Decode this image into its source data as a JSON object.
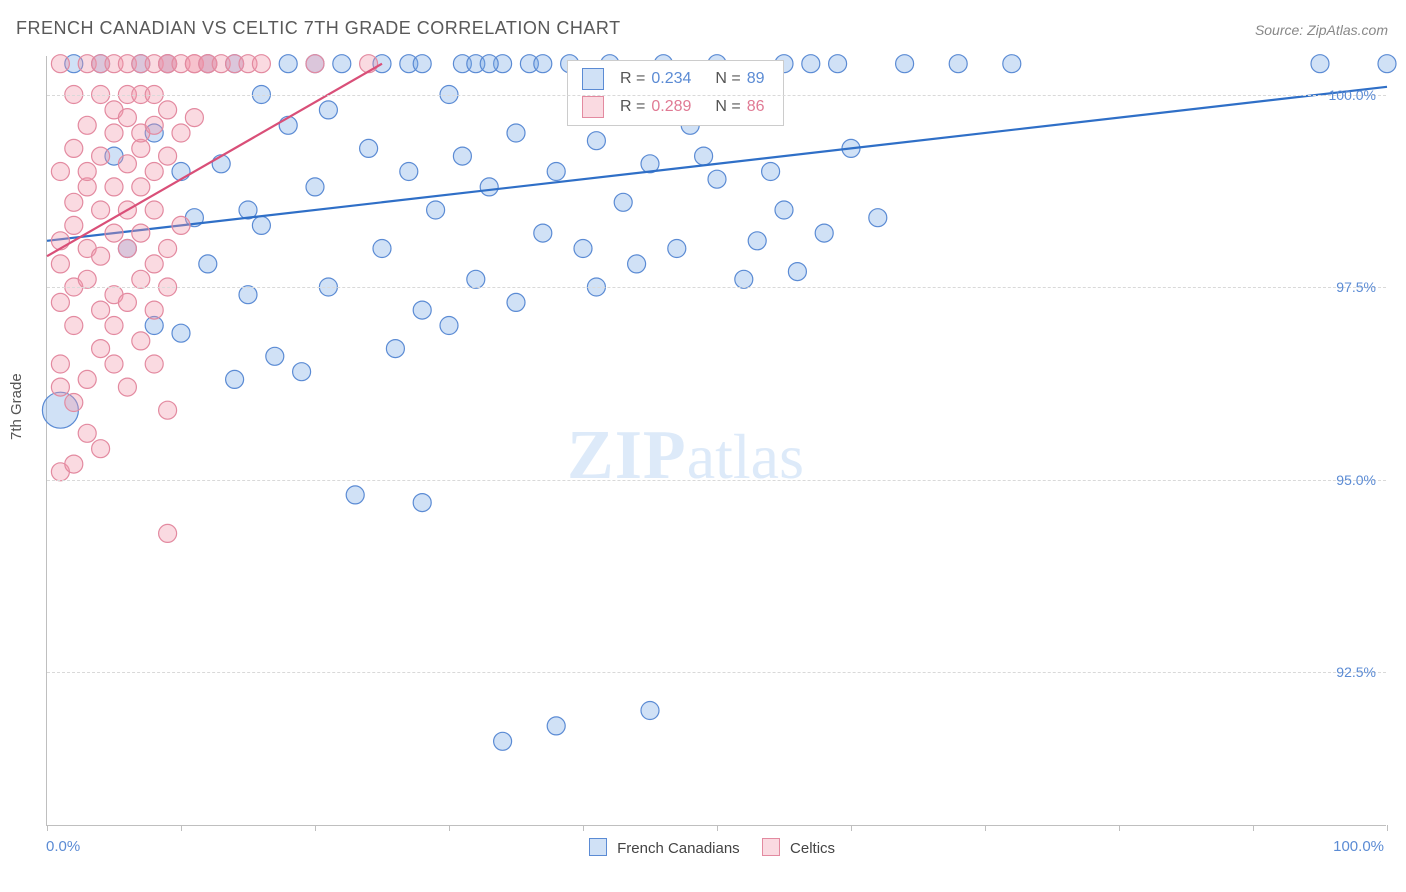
{
  "title": "FRENCH CANADIAN VS CELTIC 7TH GRADE CORRELATION CHART",
  "source_label": "Source: ZipAtlas.com",
  "ylabel": "7th Grade",
  "watermark_a": "ZIP",
  "watermark_b": "atlas",
  "chart": {
    "type": "scatter",
    "background_color": "#ffffff",
    "grid_color": "#d9d9d9",
    "axis_color": "#bfbfbf",
    "tick_label_color": "#5b8bd4",
    "xlim": [
      0,
      100
    ],
    "ylim": [
      90.5,
      100.5
    ],
    "x_tick_positions": [
      0,
      10,
      20,
      30,
      40,
      50,
      60,
      70,
      80,
      90,
      100
    ],
    "x_tick_labels": {
      "0": "0.0%",
      "100": "100.0%"
    },
    "y_ticks": [
      {
        "v": 100.0,
        "label": "100.0%"
      },
      {
        "v": 97.5,
        "label": "97.5%"
      },
      {
        "v": 95.0,
        "label": "95.0%"
      },
      {
        "v": 92.5,
        "label": "92.5%"
      }
    ],
    "marker_radius": 9,
    "marker_stroke_width": 1.2,
    "trend_line_width": 2.2,
    "series": [
      {
        "key": "french_canadians",
        "label": "French Canadians",
        "fill": "rgba(120,170,230,0.35)",
        "stroke": "#5b8bd4",
        "trend_color": "#2f6fc7",
        "R": "0.234",
        "N": "89",
        "trend": {
          "x1": 0,
          "y1": 98.1,
          "x2": 100,
          "y2": 100.1
        },
        "points": [
          [
            1,
            95.9,
            18
          ],
          [
            2,
            100.4
          ],
          [
            4,
            100.4
          ],
          [
            5,
            99.2
          ],
          [
            6,
            98.0
          ],
          [
            7,
            100.4
          ],
          [
            8,
            99.5
          ],
          [
            8,
            97.0
          ],
          [
            9,
            100.4
          ],
          [
            10,
            99.0
          ],
          [
            10,
            96.9
          ],
          [
            11,
            98.4
          ],
          [
            12,
            100.4
          ],
          [
            12,
            97.8
          ],
          [
            13,
            99.1
          ],
          [
            14,
            100.4
          ],
          [
            14,
            96.3
          ],
          [
            15,
            98.5
          ],
          [
            15,
            97.4
          ],
          [
            16,
            100.0
          ],
          [
            16,
            98.3
          ],
          [
            17,
            96.6
          ],
          [
            18,
            100.4
          ],
          [
            18,
            99.6
          ],
          [
            19,
            96.4
          ],
          [
            20,
            100.4
          ],
          [
            20,
            98.8
          ],
          [
            21,
            97.5
          ],
          [
            22,
            100.4
          ],
          [
            23,
            94.8
          ],
          [
            24,
            99.3
          ],
          [
            25,
            100.4
          ],
          [
            25,
            98.0
          ],
          [
            26,
            96.7
          ],
          [
            27,
            100.4
          ],
          [
            27,
            99.0
          ],
          [
            28,
            97.2
          ],
          [
            28,
            94.7
          ],
          [
            28,
            100.4
          ],
          [
            29,
            98.5
          ],
          [
            30,
            100.0
          ],
          [
            30,
            97.0
          ],
          [
            31,
            100.4
          ],
          [
            31,
            99.2
          ],
          [
            32,
            100.4
          ],
          [
            32,
            97.6
          ],
          [
            33,
            98.8
          ],
          [
            34,
            100.4
          ],
          [
            34,
            91.6
          ],
          [
            35,
            99.5
          ],
          [
            35,
            97.3
          ],
          [
            36,
            100.4
          ],
          [
            37,
            98.2
          ],
          [
            37,
            100.4
          ],
          [
            38,
            99.0
          ],
          [
            38,
            91.8
          ],
          [
            39,
            100.4
          ],
          [
            40,
            98.0
          ],
          [
            41,
            99.4
          ],
          [
            41,
            97.5
          ],
          [
            42,
            100.4
          ],
          [
            43,
            98.6
          ],
          [
            44,
            97.8
          ],
          [
            45,
            99.1
          ],
          [
            45,
            92.0
          ],
          [
            46,
            100.4
          ],
          [
            47,
            98.0
          ],
          [
            49,
            99.2
          ],
          [
            50,
            100.4
          ],
          [
            52,
            97.6
          ],
          [
            53,
            98.1
          ],
          [
            55,
            98.5
          ],
          [
            55,
            100.4
          ],
          [
            56,
            97.7
          ],
          [
            57,
            100.4
          ],
          [
            58,
            98.2
          ],
          [
            59,
            100.4
          ],
          [
            62,
            98.4
          ],
          [
            64,
            100.4
          ],
          [
            68,
            100.4
          ],
          [
            72,
            100.4
          ],
          [
            54,
            99.0
          ],
          [
            48,
            99.6
          ],
          [
            50,
            98.9
          ],
          [
            60,
            99.3
          ],
          [
            21,
            99.8
          ],
          [
            33,
            100.4
          ],
          [
            95,
            100.4
          ],
          [
            100,
            100.4
          ]
        ]
      },
      {
        "key": "celtics",
        "label": "Celtics",
        "fill": "rgba(240,150,170,0.35)",
        "stroke": "#e38aa0",
        "trend_color": "#d94f78",
        "R": "0.289",
        "N": "86",
        "trend": {
          "x1": 0,
          "y1": 97.9,
          "x2": 25,
          "y2": 100.4
        },
        "points": [
          [
            1,
            98.1
          ],
          [
            1,
            97.3
          ],
          [
            1,
            96.5
          ],
          [
            1,
            99.0
          ],
          [
            1,
            100.4
          ],
          [
            1,
            95.1
          ],
          [
            1,
            97.8
          ],
          [
            1,
            96.2
          ],
          [
            2,
            100.0
          ],
          [
            2,
            98.6
          ],
          [
            2,
            97.0
          ],
          [
            2,
            99.3
          ],
          [
            2,
            96.0
          ],
          [
            2,
            95.2
          ],
          [
            2,
            98.3
          ],
          [
            2,
            97.5
          ],
          [
            3,
            100.4
          ],
          [
            3,
            98.8
          ],
          [
            3,
            96.3
          ],
          [
            3,
            99.0
          ],
          [
            3,
            97.6
          ],
          [
            3,
            95.6
          ],
          [
            3,
            98.0
          ],
          [
            3,
            99.6
          ],
          [
            4,
            100.4
          ],
          [
            4,
            97.2
          ],
          [
            4,
            98.5
          ],
          [
            4,
            99.2
          ],
          [
            4,
            96.7
          ],
          [
            4,
            95.4
          ],
          [
            4,
            97.9
          ],
          [
            4,
            100.0
          ],
          [
            5,
            99.5
          ],
          [
            5,
            98.2
          ],
          [
            5,
            97.4
          ],
          [
            5,
            100.4
          ],
          [
            5,
            96.5
          ],
          [
            5,
            98.8
          ],
          [
            5,
            99.8
          ],
          [
            5,
            97.0
          ],
          [
            6,
            100.4
          ],
          [
            6,
            98.5
          ],
          [
            6,
            99.1
          ],
          [
            6,
            97.3
          ],
          [
            6,
            96.2
          ],
          [
            6,
            99.7
          ],
          [
            6,
            100.0
          ],
          [
            6,
            98.0
          ],
          [
            7,
            100.4
          ],
          [
            7,
            99.3
          ],
          [
            7,
            97.6
          ],
          [
            7,
            98.8
          ],
          [
            7,
            100.0
          ],
          [
            7,
            96.8
          ],
          [
            7,
            99.5
          ],
          [
            7,
            98.2
          ],
          [
            8,
            100.4
          ],
          [
            8,
            99.0
          ],
          [
            8,
            97.2
          ],
          [
            8,
            100.0
          ],
          [
            8,
            98.5
          ],
          [
            8,
            99.6
          ],
          [
            8,
            96.5
          ],
          [
            8,
            97.8
          ],
          [
            9,
            100.4
          ],
          [
            9,
            99.2
          ],
          [
            9,
            98.0
          ],
          [
            9,
            100.4
          ],
          [
            9,
            97.5
          ],
          [
            9,
            99.8
          ],
          [
            9,
            94.3
          ],
          [
            9,
            95.9
          ],
          [
            10,
            100.4
          ],
          [
            10,
            99.5
          ],
          [
            10,
            98.3
          ],
          [
            11,
            100.4
          ],
          [
            11,
            99.7
          ],
          [
            11,
            100.4
          ],
          [
            12,
            100.4
          ],
          [
            12,
            100.4
          ],
          [
            13,
            100.4
          ],
          [
            14,
            100.4
          ],
          [
            15,
            100.4
          ],
          [
            16,
            100.4
          ],
          [
            20,
            100.4
          ],
          [
            24,
            100.4
          ]
        ]
      }
    ]
  },
  "bottom_legend": {
    "series1": "French Canadians",
    "series2": "Celtics"
  },
  "stats_box": {
    "r_label": "R =",
    "n_label": "N ="
  }
}
